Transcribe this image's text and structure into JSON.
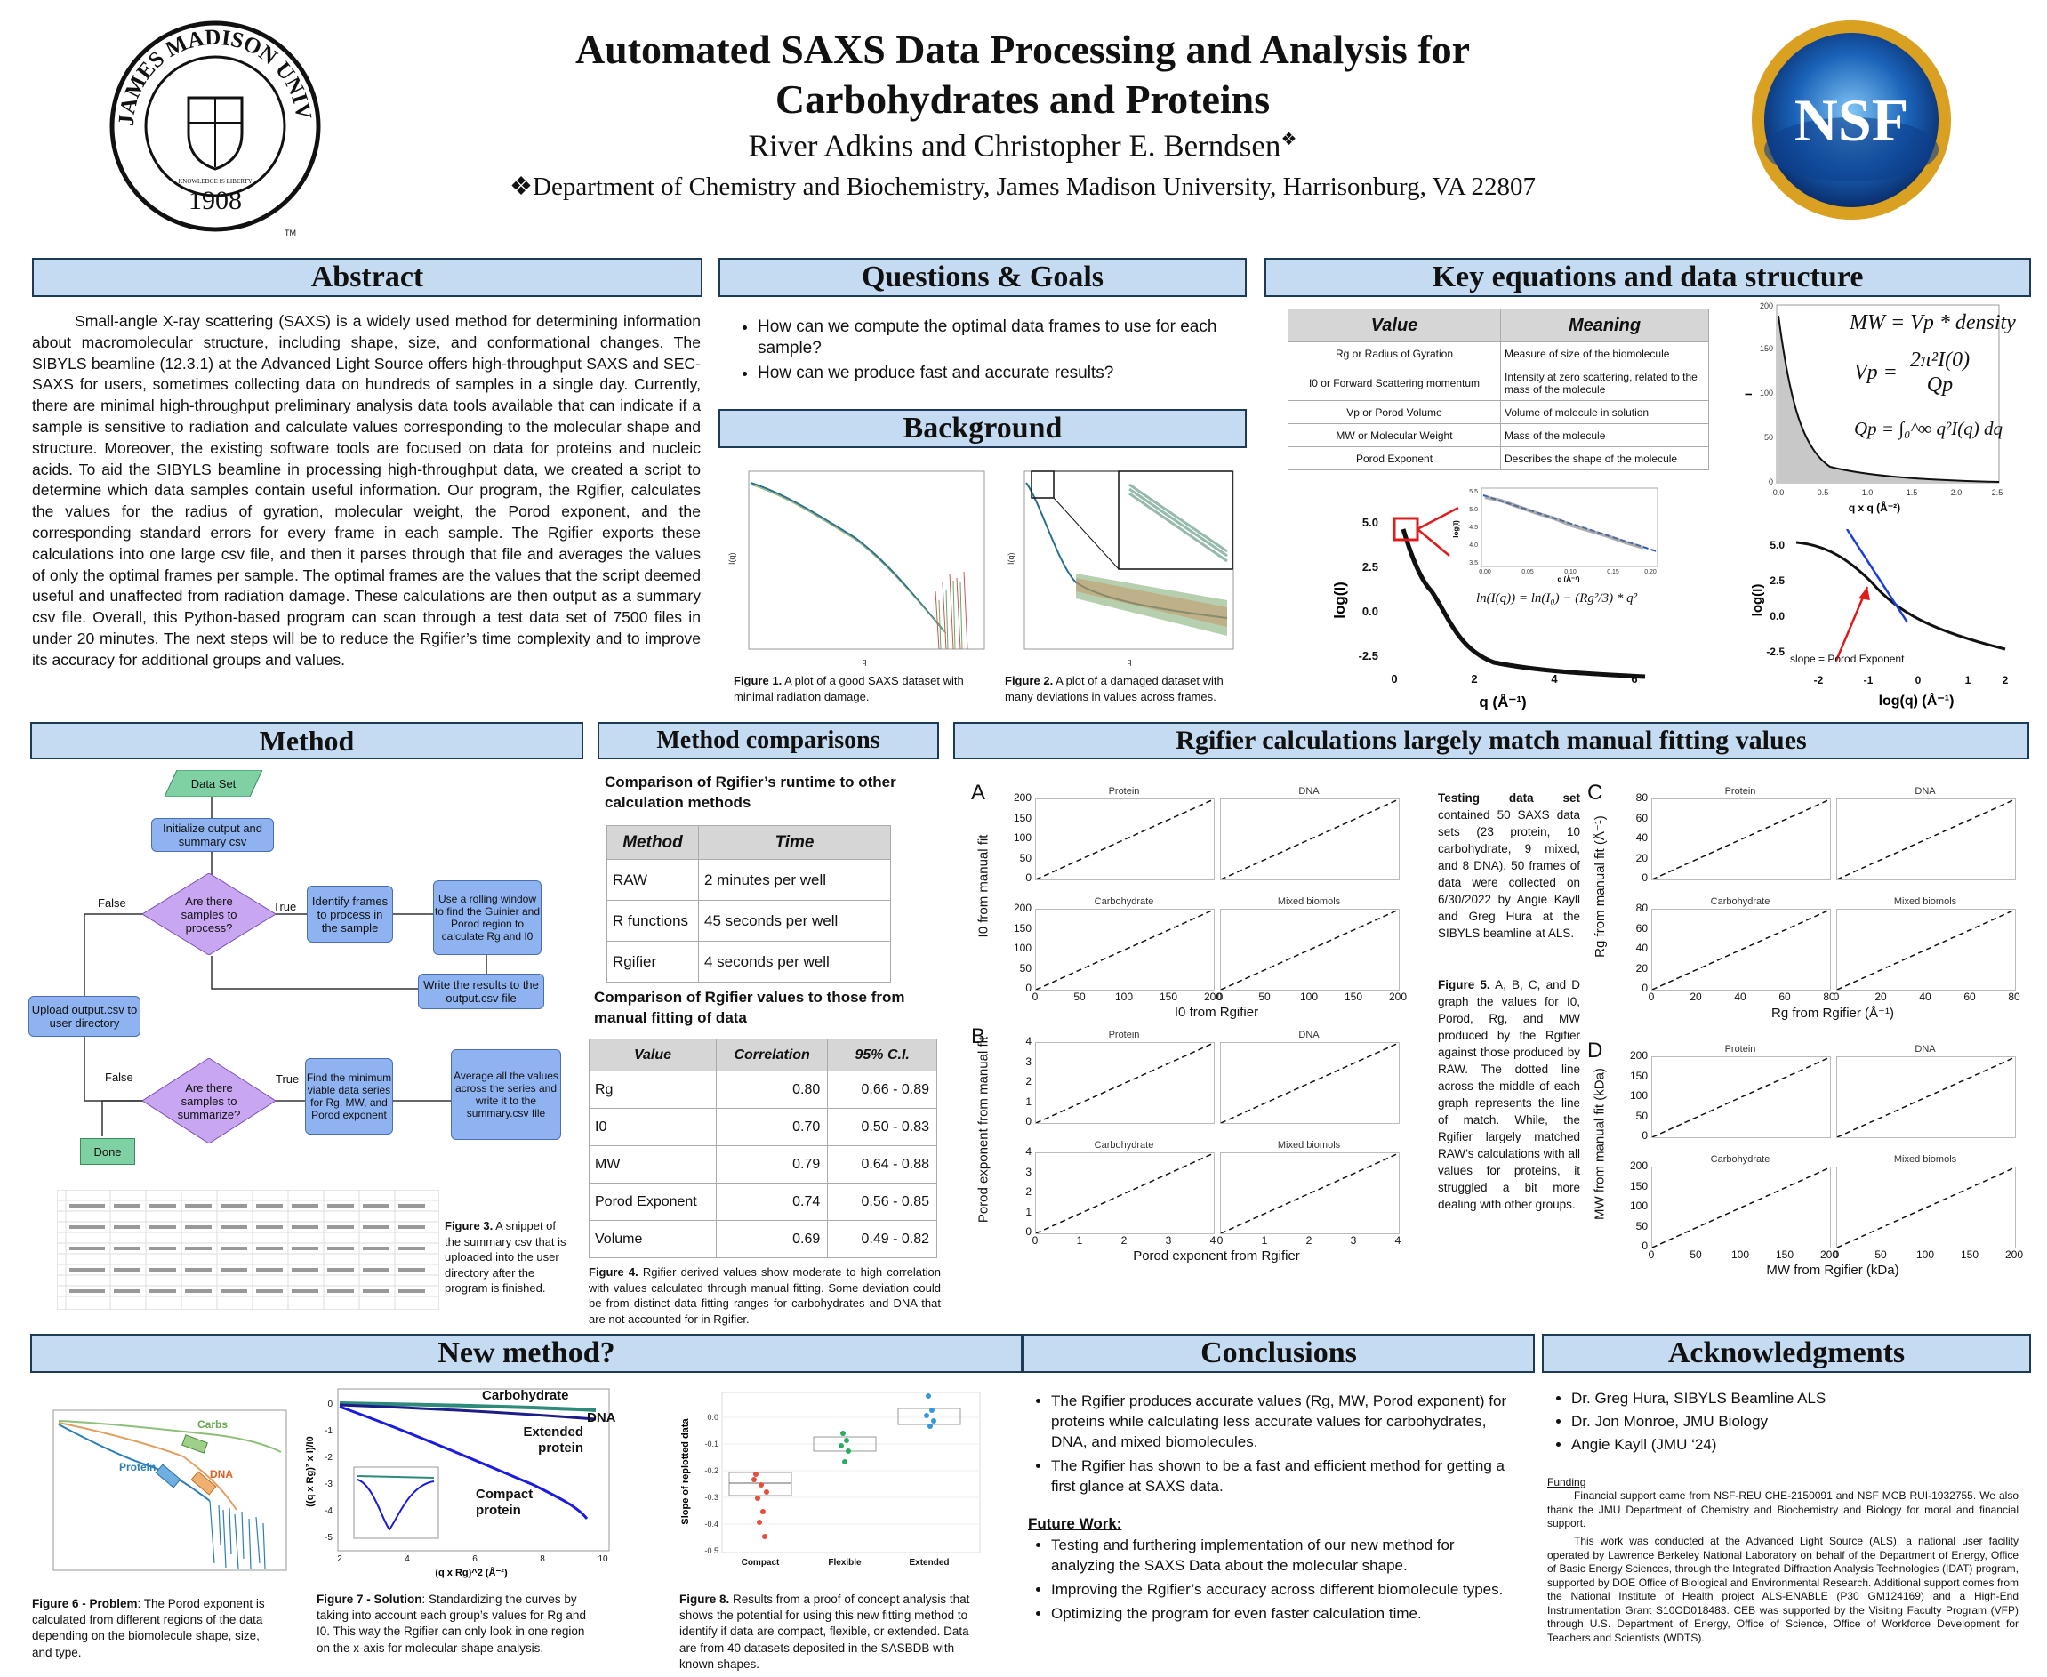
{
  "title": {
    "line1": "Automated SAXS Data Processing and Analysis for",
    "line2": "Carbohydrates and Proteins",
    "authors": "River Adkins and Christopher E. Berndsen",
    "author_mark": "❖",
    "affiliation": "❖Department of Chemistry and Biochemistry, James Madison University, Harrisonburg, VA 22807"
  },
  "logos": {
    "jmu_ring_text": "JAMES MADISON UNIVERSITY",
    "jmu_year": "1908",
    "jmu_motto": "KNOWLEDGE IS LIBERTY",
    "jmu_tm": "TM",
    "nsf_text": "NSF"
  },
  "abstract": {
    "header": "Abstract",
    "text": "Small-angle X-ray scattering (SAXS) is a widely used method for determining information about macromolecular structure, including shape, size, and conformational changes. The SIBYLS beamline (12.3.1) at the Advanced Light Source offers high-throughput SAXS and SEC-SAXS for users, sometimes collecting data on hundreds of samples in a single day. Currently, there are minimal high-throughput preliminary analysis data tools available that can indicate if a sample is sensitive to radiation and calculate values corresponding to the molecular shape and structure. Moreover, the existing software tools are focused on data for proteins and nucleic acids. To aid the SIBYLS beamline in processing high-throughput data, we created a script to determine which data samples contain useful information. Our program, the Rgifier, calculates the values for the radius of gyration, molecular weight, the Porod exponent, and the corresponding standard errors for every frame in each sample. The Rgifier exports these calculations into one large csv file, and then it parses through that file and averages the values of only the optimal frames per sample. The optimal frames are the values that the script deemed useful and unaffected from radiation damage. These calculations are then output as a summary csv file. Overall, this Python-based program can scan through a test data set of 7500 files in under 20 minutes. The next steps will be to reduce the Rgifier’s time complexity and to improve its accuracy for additional groups and values."
  },
  "questions": {
    "header": "Questions & Goals",
    "items": [
      "How can we compute the optimal data frames to use for each sample?",
      "How can we produce fast and accurate results?"
    ]
  },
  "background": {
    "header": "Background",
    "fig1_bold": "Figure 1.",
    "fig1_text": " A plot of a good SAXS dataset with minimal radiation damage.",
    "fig2_bold": "Figure 2.",
    "fig2_text": " A plot of a damaged dataset with many deviations in values across frames.",
    "axis_x": "q",
    "axis_y": "I(q)"
  },
  "key_equations": {
    "header": "Key equations and data structure",
    "table_headers": [
      "Value",
      "Meaning"
    ],
    "rows": [
      [
        "Rg or Radius of Gyration",
        "Measure of size of the biomolecule"
      ],
      [
        "I0 or Forward Scattering momentum",
        "Intensity at zero scattering, related to the mass of the molecule"
      ],
      [
        "Vp or  Porod Volume",
        "Volume of molecule in solution"
      ],
      [
        "MW or Molecular Weight",
        "Mass of the molecule"
      ],
      [
        "Porod Exponent",
        "Describes the shape of the molecule"
      ]
    ],
    "eq_mw": "MW = Vp * density",
    "eq_vp_left": "Vp =",
    "eq_vp_num": "2π²I(0)",
    "eq_vp_den": "Qp",
    "eq_qp": "Qp = ∫₀^∞ q²I(q) dq",
    "eq_guinier": "ln(I(q)) = ln(I₀) − (Rg²/3) * q²",
    "guinier_plot": {
      "xlabel": "q (Å⁻¹)",
      "ylabel": "log(I)",
      "xticks": [
        "0",
        "2",
        "4",
        "6"
      ],
      "yticks": [
        "5.0",
        "2.5",
        "0.0",
        "-2.5"
      ]
    },
    "inset_plot": {
      "xlabel": "q (Å⁻¹)",
      "ylabel": "log(I)",
      "xticks": [
        "0.00",
        "0.05",
        "0.10",
        "0.15",
        "0.20"
      ],
      "yticks": [
        "5.5",
        "5.0",
        "4.5",
        "4.0",
        "3.5"
      ]
    },
    "kratky_plot": {
      "xlabel": "q x q (Å⁻²)",
      "ylabel": "I",
      "xticks": [
        "0.0",
        "0.5",
        "1.0",
        "1.5",
        "2.0",
        "2.5"
      ],
      "yticks": [
        "200",
        "150",
        "100",
        "50",
        "0"
      ]
    },
    "porod_plot": {
      "xlabel": "log(q) (Å⁻¹)",
      "ylabel": "log(I)",
      "xticks": [
        "-2",
        "-1",
        "0",
        "1",
        "2"
      ],
      "yticks": [
        "5.0",
        "2.5",
        "0.0",
        "-2.5"
      ],
      "annotation": "slope = Porod Exponent"
    }
  },
  "method": {
    "header": "Method",
    "nodes": {
      "dataset": "Data Set",
      "init": "Initialize output and summary csv",
      "q1": "Are there samples to process?",
      "identify": "Identify frames to process in the sample",
      "rolling": "Use a rolling window to find the Guinier and Porod region to calculate Rg and I0",
      "write": "Write the results to the output.csv file",
      "upload": "Upload output.csv to user directory",
      "q2": "Are there samples to summarize?",
      "minimum": "Find the minimum viable data series for Rg, MW, and Porod exponent",
      "average": "Average all the values across the series and write it to the summary.csv file",
      "done": "Done",
      "false1": "False",
      "true1": "True",
      "false2": "False",
      "true2": "True"
    },
    "fig3_bold": "Figure 3.",
    "fig3_text": " A snippet of the summary csv that is uploaded into the user directory after the program is finished."
  },
  "comparisons": {
    "header": "Method comparisons",
    "runtime_title": "Comparison of Rgifier’s runtime to other calculation methods",
    "runtime_headers": [
      "Method",
      "Time"
    ],
    "runtime_rows": [
      [
        "RAW",
        "2 minutes per well"
      ],
      [
        "R functions",
        "45 seconds per well"
      ],
      [
        "Rgifier",
        "4 seconds per well"
      ]
    ],
    "corr_title": "Comparison of Rgifier values to those from manual fitting of data",
    "corr_headers": [
      "Value",
      "Correlation",
      "95% C.I."
    ],
    "corr_rows": [
      [
        "Rg",
        "0.80",
        "0.66 - 0.89"
      ],
      [
        "I0",
        "0.70",
        "0.50 - 0.83"
      ],
      [
        "MW",
        "0.79",
        "0.64 - 0.88"
      ],
      [
        "Porod Exponent",
        "0.74",
        "0.56 - 0.85"
      ],
      [
        "Volume",
        "0.69",
        "0.49 - 0.82"
      ]
    ],
    "fig4_bold": "Figure 4.",
    "fig4_text": " Rgifier derived values show moderate to high correlation with values calculated through manual fitting. Some deviation could be from distinct data fitting ranges for carbohydrates and DNA that are not accounted for in Rgifier."
  },
  "rgifier": {
    "header": "Rgifier calculations largely match manual fitting values",
    "panel_letters": [
      "A",
      "B",
      "C",
      "D"
    ],
    "facets": [
      "Protein",
      "DNA",
      "Carbohydrate",
      "Mixed biomols"
    ],
    "A": {
      "xlabel": "I0 from Rgifier",
      "ylabel": "I0 from manual fit",
      "ticks": [
        "0",
        "50",
        "100",
        "150",
        "200"
      ]
    },
    "B": {
      "xlabel": "Porod exponent from Rgifier",
      "ylabel": "Porod exponent from manual fit",
      "ticks": [
        "0",
        "1",
        "2",
        "3",
        "4"
      ]
    },
    "C": {
      "xlabel": "Rg from Rgifier (Å⁻¹)",
      "ylabel": "Rg from manual fit (Å⁻¹)",
      "ticks": [
        "0",
        "20",
        "40",
        "60",
        "80"
      ]
    },
    "D": {
      "xlabel": "MW from Rgifier (kDa)",
      "ylabel": "MW from manual fit (kDa)",
      "ticks": [
        "0",
        "50",
        "100",
        "150",
        "200"
      ]
    },
    "testing_bold": "Testing data set",
    "testing_text": " contained 50 SAXS data sets (23 protein, 10 carbohydrate, 9 mixed, and 8 DNA). 50 frames of data were collected on 6/30/2022 by Angie Kayll and Greg Hura at the SIBYLS beamline at ALS.",
    "fig5_bold": "Figure 5.",
    "fig5_text": " A, B, C, and D graph the values for I0, Porod, Rg, and MW produced by the Rgifier against those produced by RAW. The dotted line across the middle of each graph represents the line of match. While, the Rgifier largely matched RAW’s calculations with all values for proteins, it struggled a bit more dealing with other groups."
  },
  "new_method": {
    "header": "New method?",
    "fig6_labels": {
      "carbs": "Carbs",
      "protein": "Protein",
      "dna": "DNA"
    },
    "fig6_bold": "Figure 6 - Problem",
    "fig6_text": ": The Porod exponent is calculated from different regions of the data depending on the biomolecule shape, size, and type.",
    "fig7_labels": {
      "carb": "Carbohydrate",
      "dna": "DNA",
      "extended": "Extended protein",
      "compact": "Compact protein"
    },
    "fig7_axes": {
      "xlabel": "(q x Rg)^2 (Å⁻²)",
      "ylabel": "((q x Rg)² x I)/I0",
      "xticks": [
        "2",
        "4",
        "6",
        "8",
        "10"
      ],
      "yticks": [
        "0",
        "-1",
        "-2",
        "-3",
        "-4",
        "-5"
      ]
    },
    "fig7_bold": "Figure 7 - Solution",
    "fig7_text": ": Standardizing the curves by taking into account each group’s values for Rg and I0. This way the Rgifier can only look in one region on the x-axis for molecular shape analysis.",
    "fig8_axes": {
      "ylabel": "Slope of replotted data",
      "categories": [
        "Compact",
        "Flexible",
        "Extended"
      ],
      "yticks": [
        "0.0",
        "-0.1",
        "-0.2",
        "-0.3",
        "-0.4",
        "-0.5"
      ]
    },
    "fig8_bold": "Figure 8.",
    "fig8_text": " Results from a proof of concept analysis that shows the potential for using this new fitting method to identify if data are compact, flexible, or extended. Data are from 40 datasets deposited in the SASBDB with known shapes."
  },
  "conclusions": {
    "header": "Conclusions",
    "items": [
      "The Rgifier produces accurate values (Rg, MW, Porod exponent) for proteins while calculating less accurate values for carbohydrates, DNA, and mixed biomolecules.",
      "The Rgifier has shown to be a fast and efficient method for getting a first glance at SAXS data."
    ],
    "future_title": "Future Work:",
    "future_items": [
      "Testing and furthering implementation of our new method for analyzing the SAXS Data about the molecular shape.",
      "Improving the Rgifier’s accuracy across different biomolecule types.",
      "Optimizing the program for even faster calculation time."
    ]
  },
  "acknowledgments": {
    "header": "Acknowledgments",
    "items": [
      "Dr. Greg Hura, SIBYLS Beamline ALS",
      "Dr. Jon Monroe, JMU Biology",
      "Angie Kayll (JMU ‘24)"
    ],
    "funding_title": "Funding",
    "funding_p1": "Financial support came from NSF-REU CHE-2150091 and NSF MCB RUI-1932755. We also thank the JMU Department of Chemistry and Biochemistry and Biology for moral and financial support.",
    "funding_p2": "This work was conducted at the Advanced Light Source (ALS), a national user facility operated by Lawrence Berkeley National Laboratory on behalf of the Department of Energy, Office of Basic Energy Sciences, through the Integrated Diffraction Analysis Technologies (IDAT) program, supported by DOE Office of Biological and Environmental Research. Additional support comes from the National Institute of Health project ALS-ENABLE (P30 GM124169) and a High-End Instrumentation Grant S10OD018483. CEB was supported by the Visiting Faculty Program (VFP) through U.S. Department of Energy, Office of Science, Office of Workforce Development for Teachers and Scientists (WDTS)."
  }
}
